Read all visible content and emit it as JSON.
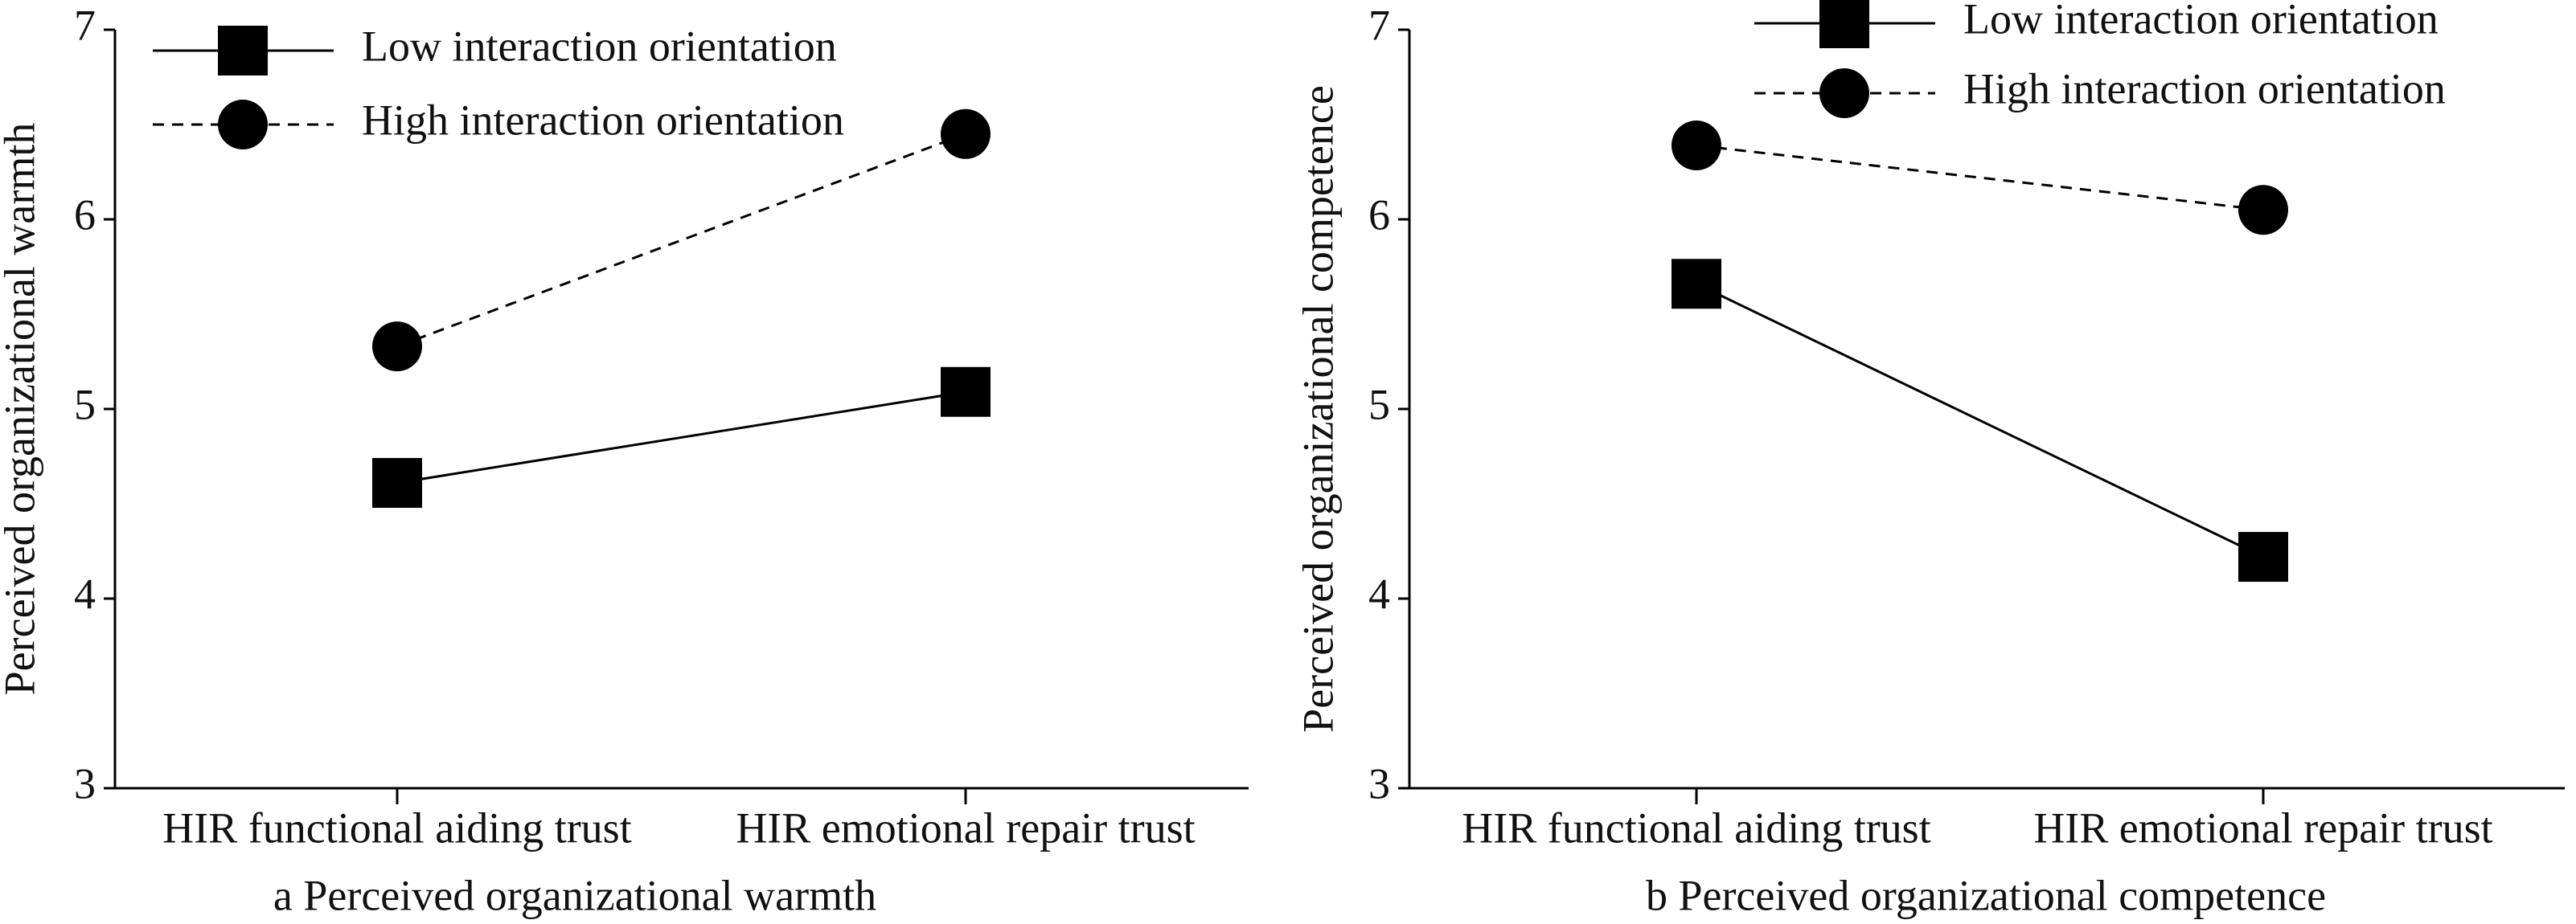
{
  "chart_data": [
    {
      "type": "line",
      "title": "a  Perceived organizational warmth",
      "y_label": "Perceived organizational warmth",
      "categories": [
        "HIR functional aiding trust",
        "HIR emotional repair trust"
      ],
      "series": [
        {
          "name": "Low interaction orientation",
          "color": "#000000",
          "marker": "square",
          "dash": "solid",
          "values": [
            4.61,
            5.09
          ]
        },
        {
          "name": "High interaction orientation",
          "color": "#000000",
          "marker": "circle",
          "dash": "dashed",
          "values": [
            5.33,
            6.45
          ]
        }
      ],
      "ylim": [
        3,
        7
      ],
      "yticks": [
        3,
        4,
        5,
        6,
        7
      ],
      "legend": "upper left"
    },
    {
      "type": "line",
      "title": "b Perceived organizational competence",
      "y_label": "Perceived organizational competence",
      "categories": [
        "HIR functional aiding trust",
        "HIR emotional repair trust"
      ],
      "series": [
        {
          "name": "Low interaction orientation",
          "color": "#000000",
          "marker": "square",
          "dash": "solid",
          "values": [
            5.66,
            4.22
          ]
        },
        {
          "name": "High interaction orientation",
          "color": "#000000",
          "marker": "circle",
          "dash": "dashed",
          "values": [
            6.39,
            6.05
          ]
        }
      ],
      "ylim": [
        3,
        7
      ],
      "yticks": [
        3,
        4,
        5,
        6,
        7
      ],
      "legend": "upper left"
    }
  ]
}
